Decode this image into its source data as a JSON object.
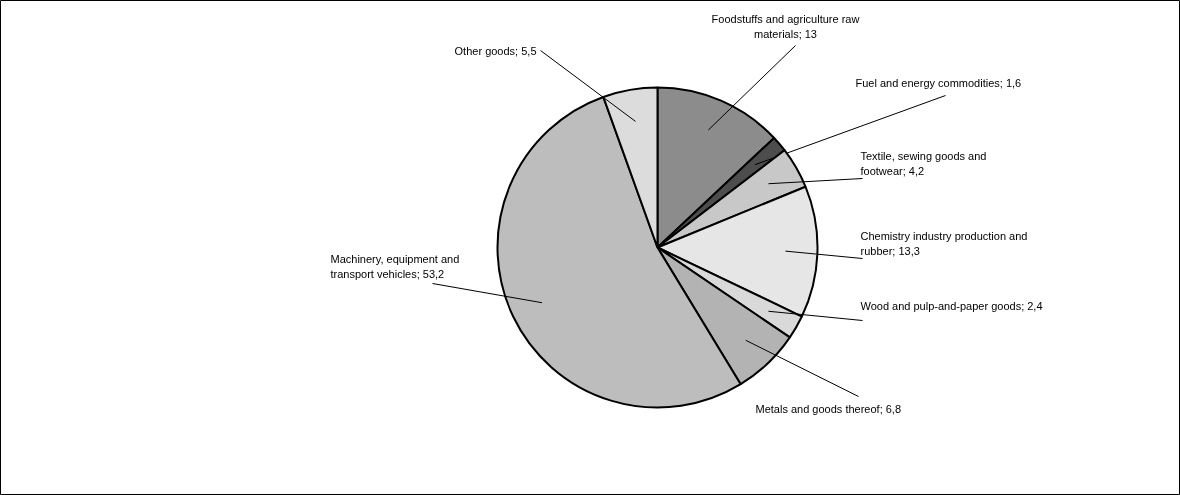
{
  "chart_data": {
    "type": "pie",
    "categories": [
      "Foodstuffs and agriculture raw materials",
      "Fuel and energy commodities",
      "Textile, sewing goods and footwear",
      "Chemistry industry production and rubber",
      "Wood and pulp-and-paper goods",
      "Metals and goods thereof",
      "Machinery, equipment and transport vehicles",
      "Other goods"
    ],
    "values": [
      13,
      1.6,
      4.2,
      13.3,
      2.4,
      6.8,
      53.2,
      5.5
    ],
    "value_labels": [
      "13",
      "1,6",
      "4,2",
      "13,3",
      "2,4",
      "6,8",
      "53,2",
      "5,5"
    ],
    "colors": [
      "#8c8c8c",
      "#4d4d4d",
      "#c8c8c8",
      "#e6e6e6",
      "#d9d9d9",
      "#b3b3b3",
      "#bdbdbd",
      "#dcdcdc"
    ]
  }
}
